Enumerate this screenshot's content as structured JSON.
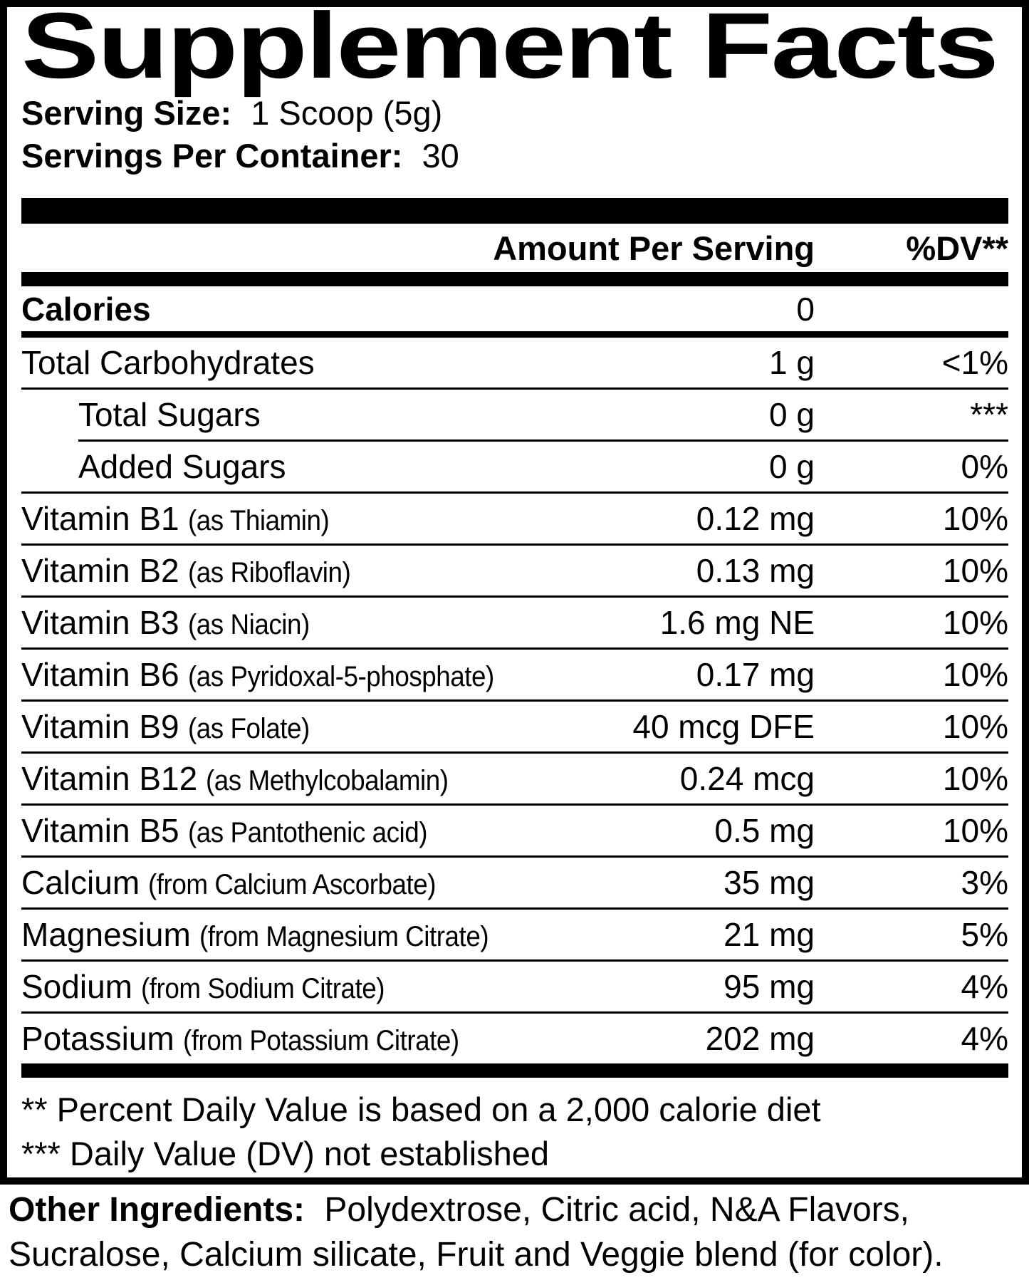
{
  "panel": {
    "title": "Supplement Facts",
    "serving_size": {
      "label": "Serving Size:",
      "value": "1 Scoop (5g)"
    },
    "servings_per_container": {
      "label": "Servings Per Container:",
      "value": "30"
    },
    "column_headers": {
      "amount": "Amount Per Serving",
      "dv": "%DV**"
    },
    "rows": [
      {
        "name": "Calories",
        "note": "",
        "amount": "0",
        "dv": ""
      },
      {
        "name": "Total Carbohydrates",
        "note": "",
        "amount": "1 g",
        "dv": "<1%"
      },
      {
        "name": "Total Sugars",
        "note": "",
        "amount": "0 g",
        "dv": "***"
      },
      {
        "name": "Added Sugars",
        "note": "",
        "amount": "0 g",
        "dv": "0%"
      },
      {
        "name": "Vitamin B1",
        "note": "(as Thiamin)",
        "amount": "0.12 mg",
        "dv": "10%"
      },
      {
        "name": "Vitamin B2",
        "note": "(as Riboflavin)",
        "amount": "0.13 mg",
        "dv": "10%"
      },
      {
        "name": "Vitamin B3",
        "note": "(as Niacin)",
        "amount": "1.6 mg NE",
        "dv": "10%"
      },
      {
        "name": "Vitamin B6",
        "note": "(as Pyridoxal-5-phosphate)",
        "amount": "0.17 mg",
        "dv": "10%"
      },
      {
        "name": "Vitamin B9",
        "note": "(as Folate)",
        "amount": "40 mcg DFE",
        "dv": "10%"
      },
      {
        "name": "Vitamin B12",
        "note": "(as Methylcobalamin)",
        "amount": "0.24 mcg",
        "dv": "10%"
      },
      {
        "name": "Vitamin B5",
        "note": "(as Pantothenic acid)",
        "amount": "0.5 mg",
        "dv": "10%"
      },
      {
        "name": "Calcium",
        "note": "(from Calcium Ascorbate)",
        "amount": "35 mg",
        "dv": "3%"
      },
      {
        "name": "Magnesium",
        "note": "(from Magnesium Citrate)",
        "amount": "21 mg",
        "dv": "5%"
      },
      {
        "name": "Sodium",
        "note": "(from Sodium Citrate)",
        "amount": "95 mg",
        "dv": "4%"
      },
      {
        "name": "Potassium",
        "note": "(from Potassium Citrate)",
        "amount": "202 mg",
        "dv": "4%"
      }
    ],
    "footnotes": [
      "** Percent Daily Value is based on a 2,000 calorie diet",
      "*** Daily Value (DV) not established"
    ]
  },
  "other_ingredients": {
    "label": "Other Ingredients:",
    "line1": "Polydextrose, Citric acid, N&A Flavors,",
    "line2": "Sucralose, Calcium silicate, Fruit and Veggie blend (for color)."
  },
  "colors": {
    "ink": "#000000",
    "paper": "#ffffff"
  }
}
